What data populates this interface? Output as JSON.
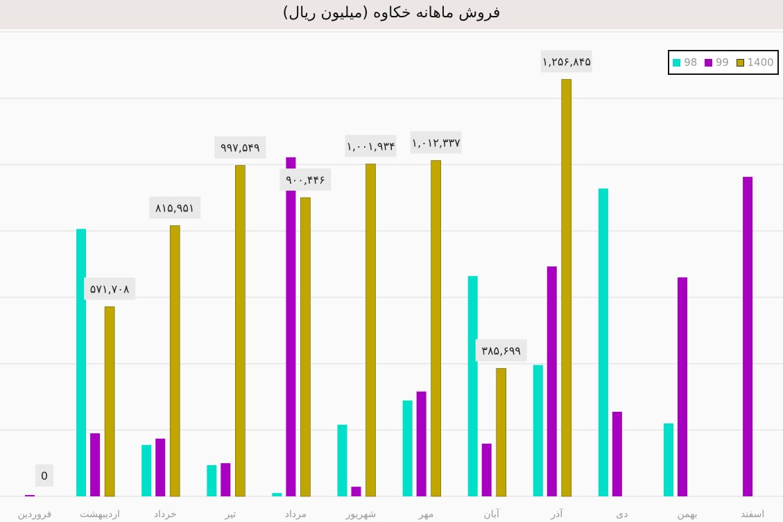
{
  "chart_data": {
    "type": "bar",
    "title": "فروش ماهانه خکاوه (میلیون ریال)",
    "categories": [
      "فروردین",
      "اردیبهشت",
      "خرداد",
      "تیر",
      "مرداد",
      "شهریور",
      "مهر",
      "آبان",
      "آذر",
      "دی",
      "بهمن",
      "اسفند"
    ],
    "series": [
      {
        "name": "98",
        "color": "#00e0c8",
        "values": [
          0,
          806000,
          155000,
          94000,
          10000,
          216000,
          289000,
          664000,
          396000,
          928000,
          220000,
          0
        ]
      },
      {
        "name": "99",
        "color": "#a800c0",
        "values": [
          4000,
          190000,
          174000,
          100000,
          1022000,
          29000,
          316000,
          159000,
          693000,
          255000,
          660000,
          963000
        ]
      },
      {
        "name": "1400",
        "color": "#bfa600",
        "values": [
          0,
          571708,
          815951,
          997549,
          900446,
          1001934,
          1012337,
          385699,
          1256845,
          null,
          null,
          null
        ],
        "data_labels": [
          "0",
          "۵۷۱,۷۰۸",
          "۸۱۵,۹۵۱",
          "۹۹۷,۵۴۹",
          "۹۰۰,۴۴۶",
          "۱,۰۰۱,۹۳۴",
          "۱,۰۱۲,۳۳۷",
          "۳۸۵,۶۹۹",
          "۱,۲۵۶,۸۴۵",
          null,
          null,
          null
        ]
      }
    ],
    "ylim": [
      0,
      1400000
    ],
    "ytick_step": 200000,
    "grid": true,
    "legend_position": "top-right",
    "xlabel": "",
    "ylabel": ""
  }
}
